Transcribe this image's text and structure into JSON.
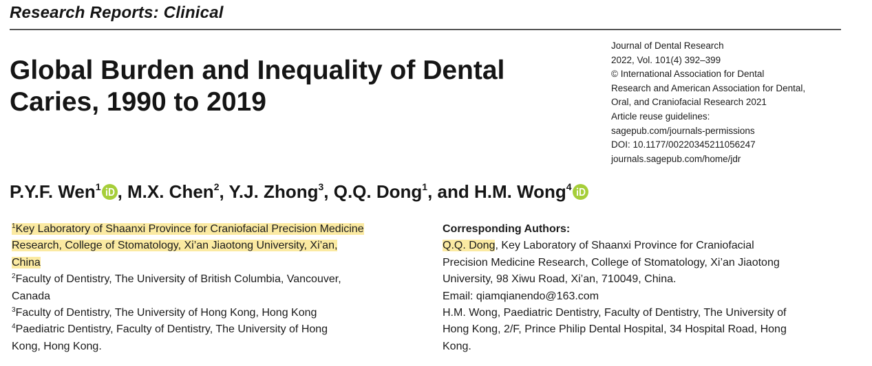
{
  "section_label": "Research Reports: Clinical",
  "title": {
    "line1": "Global Burden and Inequality of Dental",
    "line2": "Caries, 1990 to 2019"
  },
  "journal_info": [
    "Journal of Dental Research",
    "2022, Vol. 101(4) 392–399",
    "© International Association for Dental",
    "Research and American Association for Dental,",
    "Oral, and Craniofacial Research 2021",
    "Article reuse guidelines:",
    "sagepub.com/journals-permissions",
    "DOI: 10.1177/00220345211056247",
    "journals.sagepub.com/home/jdr"
  ],
  "authors": [
    {
      "name": "P.Y.F. Wen",
      "sup": "1",
      "orcid": true,
      "sep": ", "
    },
    {
      "name": "M.X. Chen",
      "sup": "2",
      "orcid": false,
      "sep": ", "
    },
    {
      "name": "Y.J. Zhong",
      "sup": "3",
      "orcid": false,
      "sep": ", "
    },
    {
      "name": "Q.Q. Dong",
      "sup": "1",
      "orcid": false,
      "sep": ", and "
    },
    {
      "name": "H.M. Wong",
      "sup": "4",
      "orcid": true,
      "sep": ""
    }
  ],
  "affiliations": {
    "a1": {
      "sup": "1",
      "line1": "Key Laboratory of Shaanxi Province for Craniofacial Precision Medicine",
      "line2": "Research, College of Stomatology, Xi’an Jiaotong University, Xi’an,",
      "line3": "China"
    },
    "a2": {
      "sup": "2",
      "line1": "Faculty of Dentistry, The University of British Columbia, Vancouver,",
      "line2": "Canada"
    },
    "a3": {
      "sup": "3",
      "line1": "Faculty of Dentistry, The University of Hong Kong, Hong Kong"
    },
    "a4": {
      "sup": "4",
      "line1": "Paediatric Dentistry, Faculty of Dentistry, The University of Hong",
      "line2": "Kong, Hong Kong."
    }
  },
  "corresponding": {
    "heading": "Corresponding Authors:",
    "author1_name": "Q.Q. Dong",
    "author1_line1_rest": ", Key Laboratory of Shaanxi Province for Craniofacial",
    "author1_line2": "Precision Medicine Research, College of Stomatology, Xi’an Jiaotong",
    "author1_line3": "University, 98 Xiwu Road, Xi’an, 710049, China.",
    "email": "Email: qiamqianendo@163.com",
    "author2_line1": "H.M. Wong, Paediatric Dentistry, Faculty of Dentistry, The University of",
    "author2_line2": "Hong Kong, 2/F, Prince Philip Dental Hospital, 34 Hospital Road, Hong",
    "author2_line3": "Kong."
  },
  "colors": {
    "highlight": "#fbeaa2",
    "orcid_green": "#a6ce39",
    "text": "#151515"
  },
  "icons": {
    "orcid": "orcid-icon"
  }
}
